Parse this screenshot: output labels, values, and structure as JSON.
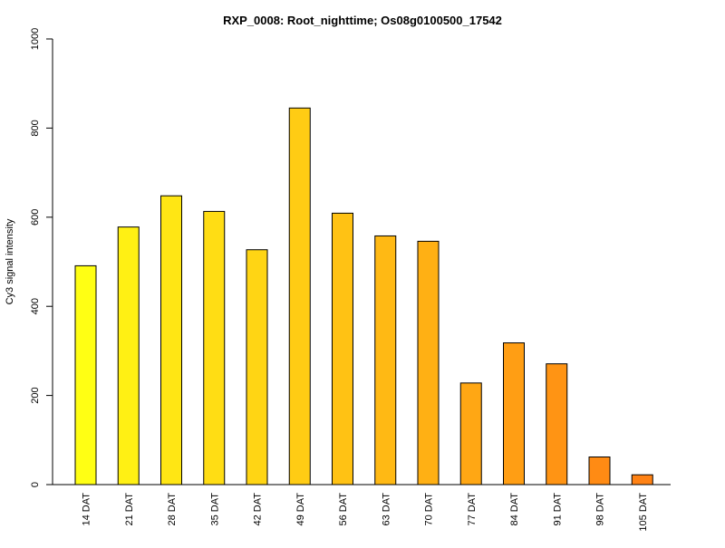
{
  "chart_data": {
    "type": "bar",
    "title": "RXP_0008: Root_nighttime; Os08g0100500_17542",
    "xlabel": "",
    "ylabel": "Cy3 signal intensity",
    "ylim": [
      0,
      1000
    ],
    "yticks": [
      0,
      200,
      400,
      600,
      800,
      1000
    ],
    "grid": false,
    "legend": "none",
    "categories": [
      "14 DAT",
      "21 DAT",
      "28 DAT",
      "35 DAT",
      "42 DAT",
      "49 DAT",
      "56 DAT",
      "63 DAT",
      "70 DAT",
      "77 DAT",
      "84 DAT",
      "91 DAT",
      "98 DAT",
      "105 DAT"
    ],
    "values": [
      491,
      578,
      648,
      613,
      527,
      845,
      609,
      558,
      546,
      228,
      318,
      271,
      62,
      22
    ],
    "colors": [
      "#FFFF14",
      "#FFF014",
      "#FFE614",
      "#FFDD14",
      "#FFD514",
      "#FFCC14",
      "#FFC214",
      "#FFB914",
      "#FFB014",
      "#FFA714",
      "#FF9E14",
      "#FF9414",
      "#FF8B14",
      "#FF8214"
    ]
  }
}
